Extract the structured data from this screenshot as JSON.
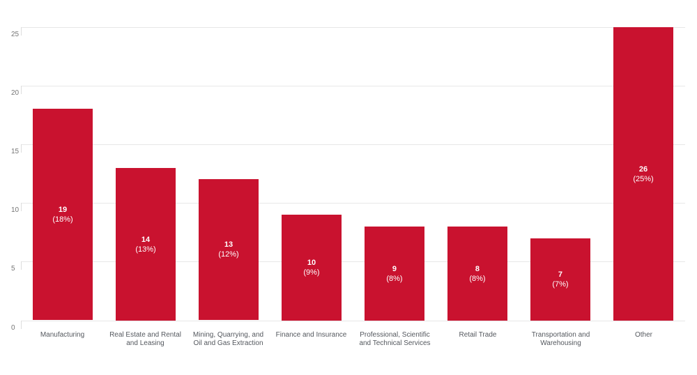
{
  "chart_data": {
    "type": "bar",
    "title": "",
    "legend": "none",
    "grid": "horizontal",
    "categories": [
      "Manufacturing",
      "Real Estate and Rental and Leasing",
      "Mining, Quarrying, and Oil and Gas Extraction",
      "Finance and Insurance",
      "Professional, Scientific and Technical Services",
      "Retail Trade",
      "Transportation and Warehousing",
      "Other"
    ],
    "category_label_lines": [
      [
        "Manufacturing"
      ],
      [
        "Real Estate and Rental",
        "and Leasing"
      ],
      [
        "Mining, Quarrying, and",
        "Oil and Gas Extraction"
      ],
      [
        "Finance and Insurance"
      ],
      [
        "Professional, Scientific",
        "and Technical Services"
      ],
      [
        "Retail Trade"
      ],
      [
        "Transportation and",
        "Warehousing"
      ],
      [
        "Other"
      ]
    ],
    "counts": [
      19,
      14,
      13,
      10,
      9,
      8,
      7,
      26
    ],
    "percentages": [
      18,
      13,
      12,
      9,
      8,
      8,
      7,
      25
    ],
    "plotted_heights": [
      18,
      13,
      12,
      9,
      8,
      8,
      7,
      25
    ],
    "bar_value_labels": [
      "19",
      "14",
      "13",
      "10",
      "9",
      "8",
      "7",
      "26"
    ],
    "bar_percent_labels": [
      "(18%)",
      "(13%)",
      "(12%)",
      "(9%)",
      "(8%)",
      "(8%)",
      "(7%)",
      "(25%)"
    ],
    "y_axis": {
      "ticks": [
        0,
        5,
        10,
        15,
        20,
        25
      ],
      "tick_labels": [
        "0",
        "5",
        "10",
        "15",
        "20",
        "25"
      ],
      "range": [
        0,
        25.8
      ]
    },
    "colors": {
      "bar": "#C9122F",
      "bar_label_text": "#FFFFFF",
      "gridline": "#E7E7E7",
      "y_tick_label": "#757575",
      "x_axis_label": "#54585E",
      "background": "#FFFFFF"
    }
  }
}
